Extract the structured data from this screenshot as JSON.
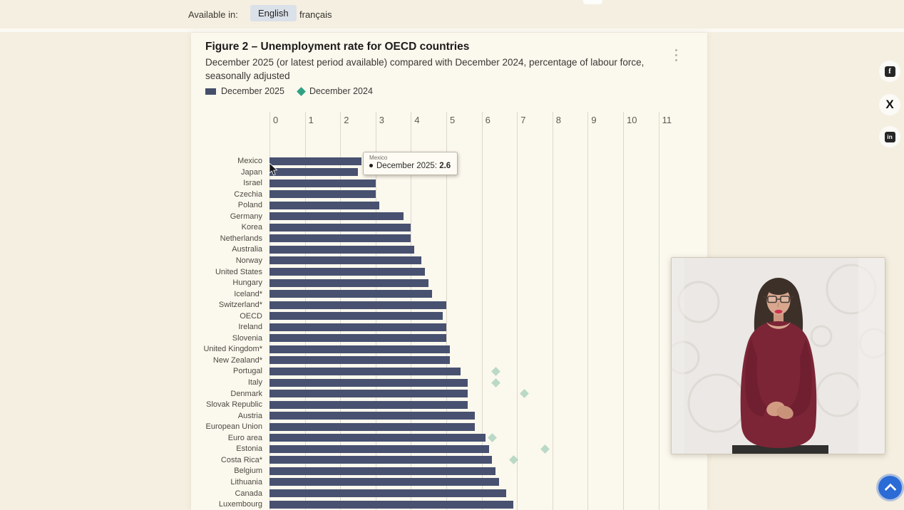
{
  "page": {
    "bg": "#f5efe1",
    "card_bg": "#fbf8ee"
  },
  "language_bar": {
    "label": "Available in:",
    "options": [
      {
        "label": "English",
        "selected": true
      },
      {
        "label": "français",
        "selected": false
      }
    ]
  },
  "figure": {
    "title": "Figure 2 – Unemployment rate for OECD countries",
    "subtitle": "December 2025 (or latest period available) compared with December 2024, percentage of labour force, seasonally adjusted",
    "legend": [
      {
        "label": "December 2025",
        "marker": "square",
        "color": "#454e6b"
      },
      {
        "label": "December 2024",
        "marker": "diamond",
        "color": "#2fa184"
      }
    ]
  },
  "chart_data": {
    "type": "bar",
    "orientation": "horizontal",
    "title": "Figure 2 – Unemployment rate for OECD countries",
    "subtitle": "December 2025 (or latest period available) compared with December 2024, percentage of labour force, seasonally adjusted",
    "xlim": [
      0,
      11.6
    ],
    "xticks": [
      0,
      1,
      2,
      3,
      4,
      5,
      6,
      7,
      8,
      9,
      10,
      11
    ],
    "grid": "vertical",
    "legend_position": "top-left",
    "categories": [
      "Mexico",
      "Japan",
      "Israel",
      "Czechia",
      "Poland",
      "Germany",
      "Korea",
      "Netherlands",
      "Australia",
      "Norway",
      "United States",
      "Hungary",
      "Iceland*",
      "Switzerland*",
      "OECD",
      "Ireland",
      "Slovenia",
      "United Kingdom*",
      "New Zealand*",
      "Portugal",
      "Italy",
      "Denmark",
      "Slovak Republic",
      "Austria",
      "European Union",
      "Euro area",
      "Estonia",
      "Costa Rica*",
      "Belgium",
      "Lithuania",
      "Canada",
      "Luxembourg"
    ],
    "series": [
      {
        "name": "December 2025",
        "marker": "bar",
        "color": "#485170",
        "values": [
          2.6,
          2.5,
          3.0,
          3.0,
          3.1,
          3.8,
          4.0,
          4.0,
          4.1,
          4.3,
          4.4,
          4.5,
          4.6,
          5.0,
          4.9,
          5.0,
          5.0,
          5.1,
          5.1,
          5.4,
          5.6,
          5.6,
          5.6,
          5.8,
          5.8,
          6.1,
          6.2,
          6.3,
          6.4,
          6.5,
          6.7,
          6.9
        ]
      },
      {
        "name": "December 2024",
        "marker": "diamond",
        "color": "#79ba9f",
        "values": [
          null,
          null,
          null,
          null,
          null,
          null,
          null,
          null,
          null,
          null,
          null,
          null,
          null,
          null,
          null,
          null,
          null,
          null,
          null,
          6.4,
          6.4,
          7.2,
          null,
          null,
          null,
          6.3,
          7.8,
          6.9,
          null,
          null,
          null,
          null
        ]
      }
    ]
  },
  "tooltip": {
    "country": "Mexico",
    "series_label": "December 2025: ",
    "value": "2.6"
  },
  "chart_menu": {
    "icon": "kebab-menu"
  },
  "social": [
    {
      "name": "facebook",
      "glyph": "f"
    },
    {
      "name": "x",
      "glyph": "X"
    },
    {
      "name": "linkedin",
      "glyph": "in"
    }
  ],
  "interpreter_video": {
    "alt": "Sign language interpreter"
  },
  "scroll_top": {
    "icon": "chevron-up"
  }
}
